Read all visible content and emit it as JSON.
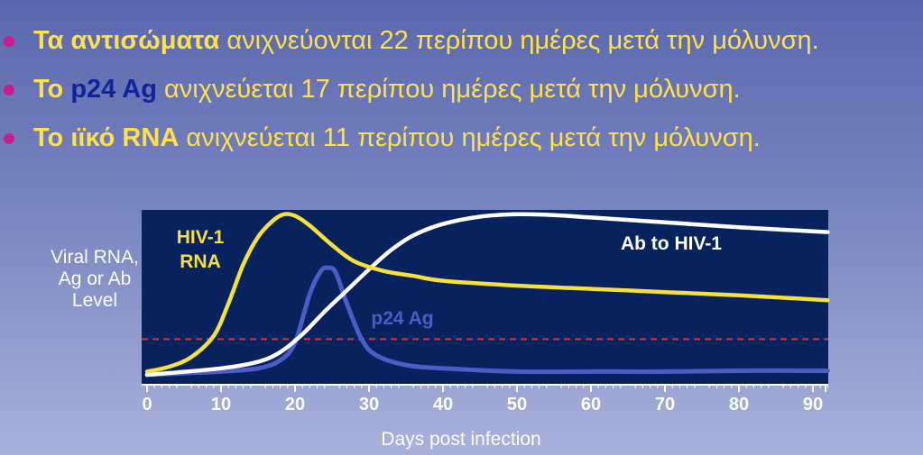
{
  "bullets": [
    {
      "highlight": "Τα αντισώματα",
      "rest": " ανιχνεύονται 22 περίπου ημέρες μετά την μόλυνση."
    },
    {
      "prefix": "Το ",
      "highlight": "p24 Ag",
      "rest": " ανιχνεύεται 17 περίπου ημέρες μετά την μόλυνση."
    },
    {
      "highlight": "Το ιϊκό RNA",
      "rest": " ανιχνεύεται 11 περίπου ημέρες μετά την μόλυνση."
    }
  ],
  "colors": {
    "plot_bg": "#08225e",
    "rna": "#f5e03c",
    "p24": "#4a5cc6",
    "ab": "#ffffff",
    "threshold": "#d23a3a",
    "bullet_dot": "#cc1a8f"
  },
  "chart_data": {
    "type": "line",
    "xlabel": "Days post infection",
    "ylabel_lines": [
      "Viral RNA,",
      "Ag or Ab",
      "Level"
    ],
    "xlim": [
      0,
      92
    ],
    "ylim": [
      0,
      100
    ],
    "x_ticks": [
      0,
      10,
      20,
      30,
      40,
      50,
      60,
      70,
      80,
      90
    ],
    "grid": false,
    "threshold": 22,
    "series": [
      {
        "key": "rna",
        "label_lines": [
          "HIV-1",
          "RNA"
        ],
        "points": [
          [
            0,
            2
          ],
          [
            3,
            5
          ],
          [
            6,
            11
          ],
          [
            9,
            24
          ],
          [
            11,
            44
          ],
          [
            13,
            68
          ],
          [
            15,
            85
          ],
          [
            17,
            95
          ],
          [
            18.5,
            99
          ],
          [
            20,
            98
          ],
          [
            22,
            92
          ],
          [
            25,
            80
          ],
          [
            28,
            70
          ],
          [
            32,
            64
          ],
          [
            36,
            61
          ],
          [
            40,
            58
          ],
          [
            50,
            55
          ],
          [
            60,
            53
          ],
          [
            70,
            51
          ],
          [
            80,
            49
          ],
          [
            92,
            46
          ]
        ]
      },
      {
        "key": "p24",
        "label_lines": [
          "p24  Ag"
        ],
        "points": [
          [
            0,
            0
          ],
          [
            5,
            1
          ],
          [
            10,
            2
          ],
          [
            15,
            4
          ],
          [
            18,
            9
          ],
          [
            20,
            20
          ],
          [
            22,
            50
          ],
          [
            23.5,
            64
          ],
          [
            24.5,
            66
          ],
          [
            25.5,
            63
          ],
          [
            27,
            44
          ],
          [
            29,
            22
          ],
          [
            31,
            12
          ],
          [
            35,
            6
          ],
          [
            40,
            4
          ],
          [
            50,
            2
          ],
          [
            60,
            2
          ],
          [
            70,
            2
          ],
          [
            80,
            2.5
          ],
          [
            92,
            2.5
          ]
        ]
      },
      {
        "key": "ab",
        "label_lines": [
          "Ab to HIV-1"
        ],
        "points": [
          [
            0,
            0
          ],
          [
            10,
            4
          ],
          [
            15,
            8
          ],
          [
            18,
            14
          ],
          [
            21,
            25
          ],
          [
            24,
            39
          ],
          [
            27,
            52
          ],
          [
            30,
            65
          ],
          [
            33,
            77
          ],
          [
            36,
            86
          ],
          [
            40,
            93
          ],
          [
            45,
            97.5
          ],
          [
            50,
            99
          ],
          [
            55,
            98.5
          ],
          [
            60,
            97
          ],
          [
            70,
            94
          ],
          [
            80,
            91
          ],
          [
            92,
            88
          ]
        ]
      }
    ]
  }
}
